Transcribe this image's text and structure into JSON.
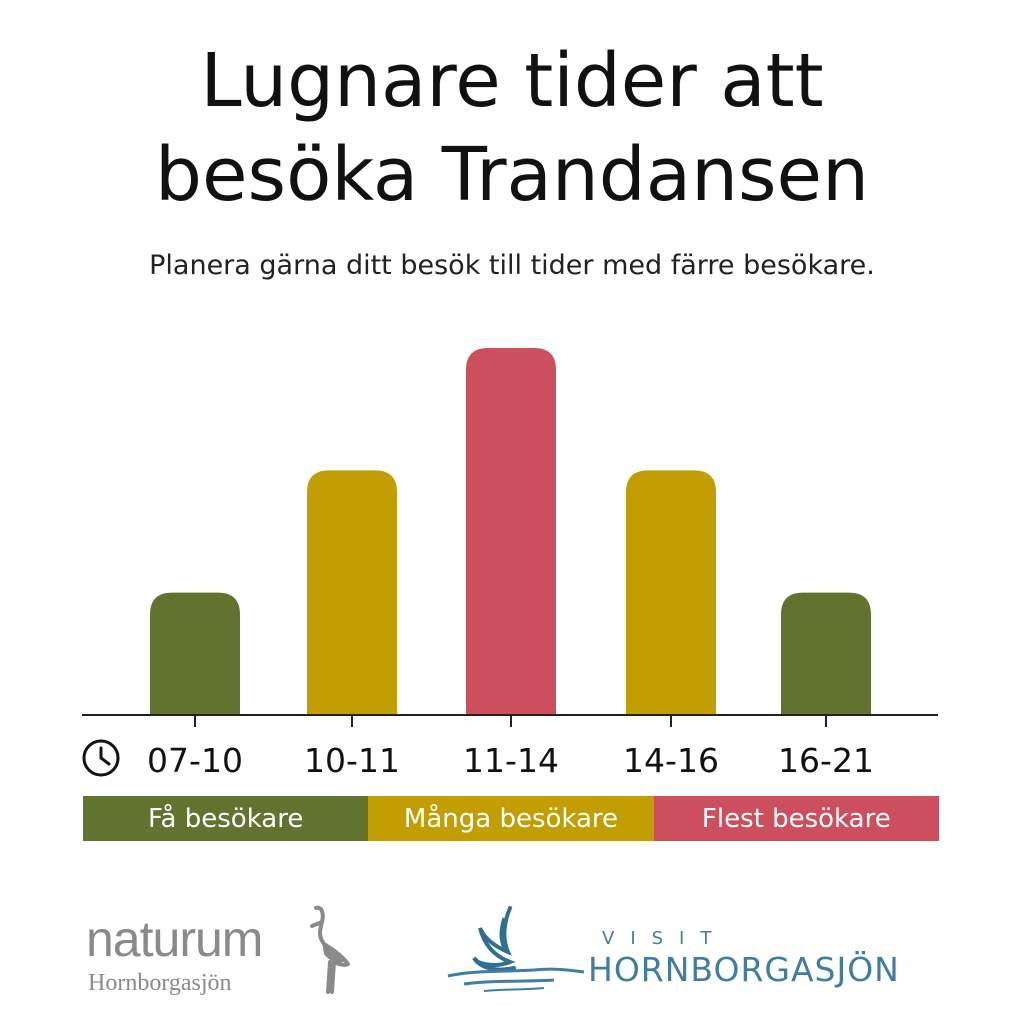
{
  "title_line1": "Lugnare tider att",
  "title_line2": "besöka Trandansen",
  "subtitle": "Planera gärna ditt besök till tider med färre besökare.",
  "chart_data": {
    "type": "bar",
    "categories": [
      "07-10",
      "10-11",
      "11-14",
      "14-16",
      "16-21"
    ],
    "values": [
      1,
      2,
      3,
      2,
      1
    ],
    "levels": [
      "few",
      "many",
      "most",
      "many",
      "few"
    ],
    "ylim": [
      0,
      3
    ],
    "grid": false,
    "xaxis_icon": "clock-icon"
  },
  "legend": [
    {
      "key": "few",
      "label": "Få besökare",
      "color": "#62722f"
    },
    {
      "key": "many",
      "label": "Många besökare",
      "color": "#c29e02"
    },
    {
      "key": "most",
      "label": "Flest besökare",
      "color": "#cd4e5d"
    }
  ],
  "logos": {
    "naturum": {
      "name": "naturum",
      "sub": "Hornborgasjön",
      "color": "#8a8a8a"
    },
    "visit": {
      "small": "VISIT",
      "main": "HORNBORGASJÖN",
      "color": "#3f7ea0"
    }
  }
}
